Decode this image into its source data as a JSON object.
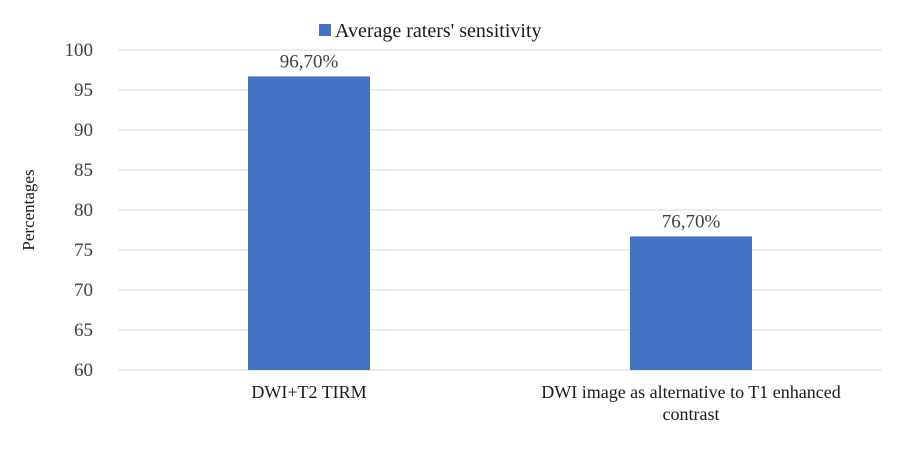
{
  "chart_data": {
    "type": "bar",
    "title": "",
    "xlabel": "",
    "ylabel": "Percentages",
    "categories": [
      [
        "DWI+T2 TIRM"
      ],
      [
        "DWI image as alternative to T1 enhanced",
        "contrast"
      ]
    ],
    "series": [
      {
        "name": "Average raters' sensitivity",
        "values": [
          96.7,
          76.7
        ],
        "labels": [
          "96,70%",
          "76,70%"
        ],
        "color": "#4472C4"
      }
    ],
    "ylim": [
      60,
      100
    ],
    "yticks": [
      "60",
      "65",
      "70",
      "75",
      "80",
      "85",
      "90",
      "95",
      "100"
    ],
    "ytick_values": [
      60,
      65,
      70,
      75,
      80,
      85,
      90,
      95,
      100
    ],
    "grid": true,
    "legend_position": "top"
  }
}
